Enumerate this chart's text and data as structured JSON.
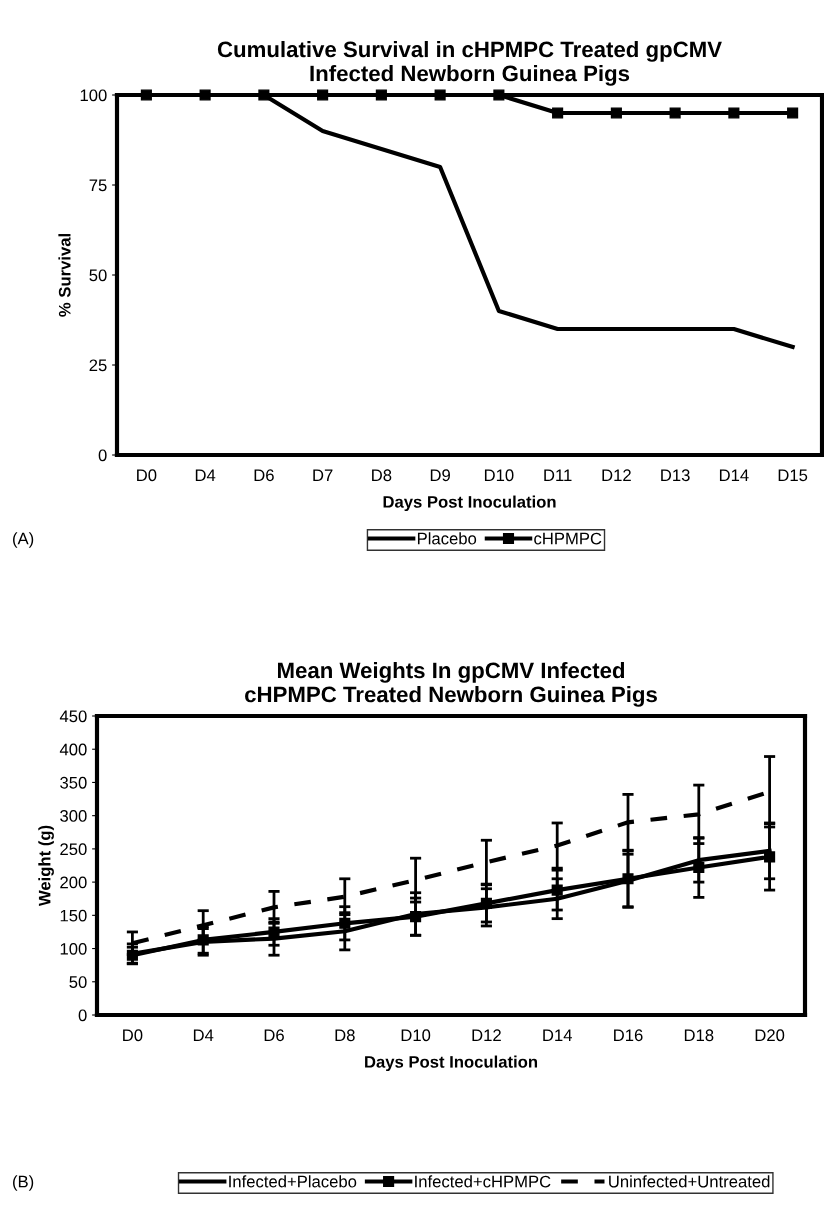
{
  "chart_data": [
    {
      "type": "line",
      "title": "Cumulative Survival in cHPMPC Treated gpCMV\nInfected Newborn Guinea Pigs",
      "xlabel": "Days Post Inoculation",
      "ylabel": "% Survival",
      "categories": [
        "D0",
        "D4",
        "D6",
        "D7",
        "D8",
        "D9",
        "D10",
        "D11",
        "D12",
        "D13",
        "D14",
        "D15"
      ],
      "series": [
        {
          "name": "Placebo",
          "color": "#000000",
          "marker": "none",
          "line_style": "solid",
          "values": [
            100,
            100,
            100,
            90,
            85,
            80,
            40,
            35,
            35,
            35,
            35,
            30
          ]
        },
        {
          "name": "cHPMPC",
          "color": "#000000",
          "marker": "square",
          "line_style": "solid",
          "values": [
            100,
            100,
            100,
            100,
            100,
            100,
            100,
            95,
            95,
            95,
            95,
            95
          ]
        }
      ],
      "ylim": [
        0,
        100
      ],
      "yticks": [
        0,
        25,
        50,
        75,
        100
      ],
      "grid": false,
      "legend": "bottom",
      "annotations": [
        "(A)"
      ]
    },
    {
      "type": "line",
      "title": "Mean Weights In gpCMV Infected\ncHPMPC Treated Newborn Guinea Pigs",
      "xlabel": "Days Post Inoculation",
      "ylabel": "Weight (g)",
      "categories": [
        "D0",
        "D4",
        "D6",
        "D8",
        "D10",
        "D12",
        "D14",
        "D16",
        "D18",
        "D20"
      ],
      "series": [
        {
          "name": "Infected+Placebo",
          "color": "#000000",
          "marker": "none",
          "line_style": "solid",
          "values": [
            92,
            110,
            115,
            126,
            152,
            162,
            175,
            202,
            233,
            247
          ],
          "errors": [
            15,
            20,
            25,
            28,
            32,
            28,
            30,
            40,
            33,
            42
          ]
        },
        {
          "name": "Infected+cHPMPC",
          "color": "#000000",
          "marker": "square",
          "line_style": "solid",
          "values": [
            90,
            113,
            125,
            138,
            148,
            168,
            188,
            205,
            222,
            238
          ],
          "errors": [
            12,
            20,
            20,
            25,
            28,
            28,
            30,
            42,
            45,
            50
          ]
        },
        {
          "name": "Uninfected+Untreated",
          "color": "#000000",
          "marker": "none",
          "line_style": "dashed",
          "values": [
            108,
            135,
            162,
            178,
            203,
            230,
            255,
            290,
            302,
            336
          ],
          "errors": [
            17,
            22,
            24,
            27,
            33,
            33,
            34,
            42,
            44,
            53
          ]
        }
      ],
      "ylim": [
        0,
        450
      ],
      "yticks": [
        0,
        50,
        100,
        150,
        200,
        250,
        300,
        350,
        400,
        450
      ],
      "grid": false,
      "legend": "bottom",
      "annotations": [
        "(B)"
      ]
    }
  ]
}
